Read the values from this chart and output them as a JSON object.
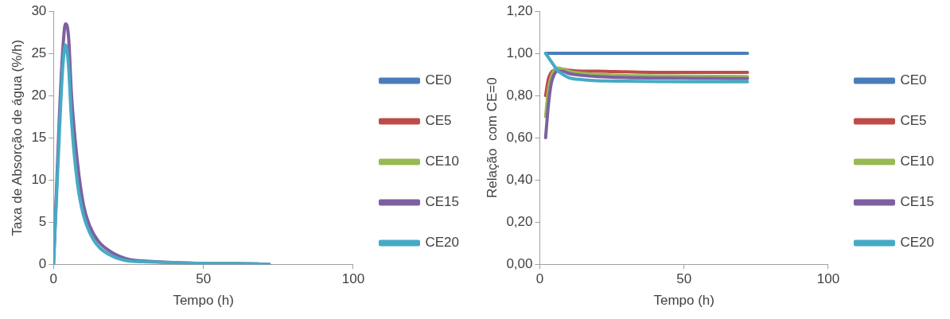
{
  "chart_data": [
    {
      "type": "line",
      "xlabel": "Tempo (h)",
      "ylabel": "Taxa de Absorção de água (%/h)",
      "xlim": [
        0,
        100
      ],
      "xticks": [
        0,
        50,
        100
      ],
      "ylim": [
        0,
        30
      ],
      "yticks": [
        0,
        5,
        10,
        15,
        20,
        25,
        30
      ],
      "grid": false,
      "legend": "right",
      "marker": "none",
      "line_style": "solid",
      "x": [
        0,
        1,
        2,
        3,
        4,
        5,
        6,
        8,
        10,
        12,
        15,
        20,
        25,
        30,
        40,
        50,
        60,
        72
      ],
      "series": [
        {
          "name": "CE0",
          "color": "#4a7ebb",
          "values": [
            null,
            null,
            null,
            null,
            null,
            null,
            null,
            null,
            null,
            null,
            null,
            null,
            null,
            null,
            null,
            null,
            null,
            null
          ]
        },
        {
          "name": "CE5",
          "color": "#be4b48",
          "values": [
            null,
            null,
            null,
            null,
            null,
            null,
            null,
            null,
            null,
            null,
            null,
            null,
            null,
            null,
            null,
            null,
            null,
            null
          ]
        },
        {
          "name": "CE10",
          "color": "#98b954",
          "values": [
            null,
            null,
            null,
            null,
            null,
            null,
            null,
            null,
            null,
            null,
            null,
            null,
            null,
            null,
            null,
            null,
            null,
            null
          ]
        },
        {
          "name": "CE15",
          "color": "#7d60a0",
          "values": [
            0,
            9,
            18,
            25,
            28.5,
            27,
            20,
            12,
            7,
            4.6,
            2.7,
            1.3,
            0.6,
            0.4,
            0.2,
            0.1,
            0.1,
            0
          ]
        },
        {
          "name": "CE20",
          "color": "#46aac5",
          "values": [
            0,
            8,
            16,
            23,
            26,
            23.5,
            17,
            9.5,
            5.8,
            3.8,
            2.1,
            0.9,
            0.4,
            0.3,
            0.2,
            0.1,
            0.1,
            0
          ]
        }
      ]
    },
    {
      "type": "line",
      "xlabel": "Tempo (h)",
      "ylabel": "Relação  com CE=0",
      "xlim": [
        0,
        100
      ],
      "xticks": [
        0,
        50,
        100
      ],
      "ylim": [
        0,
        1.2
      ],
      "yticks": [
        {
          "value": 0,
          "label": "0,00"
        },
        {
          "value": 0.2,
          "label": "0,20"
        },
        {
          "value": 0.4,
          "label": "0,40"
        },
        {
          "value": 0.6,
          "label": "0,60"
        },
        {
          "value": 0.8,
          "label": "0,80"
        },
        {
          "value": 1,
          "label": "1,00"
        },
        {
          "value": 1.2,
          "label": "1,20"
        }
      ],
      "grid": false,
      "legend": "right",
      "marker": "none",
      "line_style": "solid",
      "x": [
        2,
        3,
        4,
        5,
        6,
        8,
        10,
        15,
        20,
        30,
        40,
        50,
        60,
        72
      ],
      "series": [
        {
          "name": "CE0",
          "color": "#4a7ebb",
          "values": [
            1,
            1,
            1,
            1,
            1,
            1,
            1,
            1,
            1,
            1,
            1,
            1,
            1,
            1
          ]
        },
        {
          "name": "CE5",
          "color": "#be4b48",
          "values": [
            0.8,
            0.88,
            0.91,
            0.92,
            0.925,
            0.925,
            0.92,
            0.915,
            0.915,
            0.912,
            0.91,
            0.91,
            0.91,
            0.91
          ]
        },
        {
          "name": "CE10",
          "color": "#98b954",
          "values": [
            0.7,
            0.83,
            0.89,
            0.92,
            0.93,
            0.925,
            0.915,
            0.905,
            0.9,
            0.895,
            0.893,
            0.892,
            0.891,
            0.89
          ]
        },
        {
          "name": "CE15",
          "color": "#7d60a0",
          "values": [
            0.6,
            0.76,
            0.86,
            0.9,
            0.915,
            0.915,
            0.905,
            0.895,
            0.89,
            0.885,
            0.883,
            0.882,
            0.881,
            0.88
          ]
        },
        {
          "name": "CE20",
          "color": "#46aac5",
          "values": [
            1,
            0.98,
            0.96,
            0.94,
            0.92,
            0.9,
            0.885,
            0.875,
            0.87,
            0.868,
            0.866,
            0.865,
            0.865,
            0.865
          ]
        }
      ]
    }
  ]
}
